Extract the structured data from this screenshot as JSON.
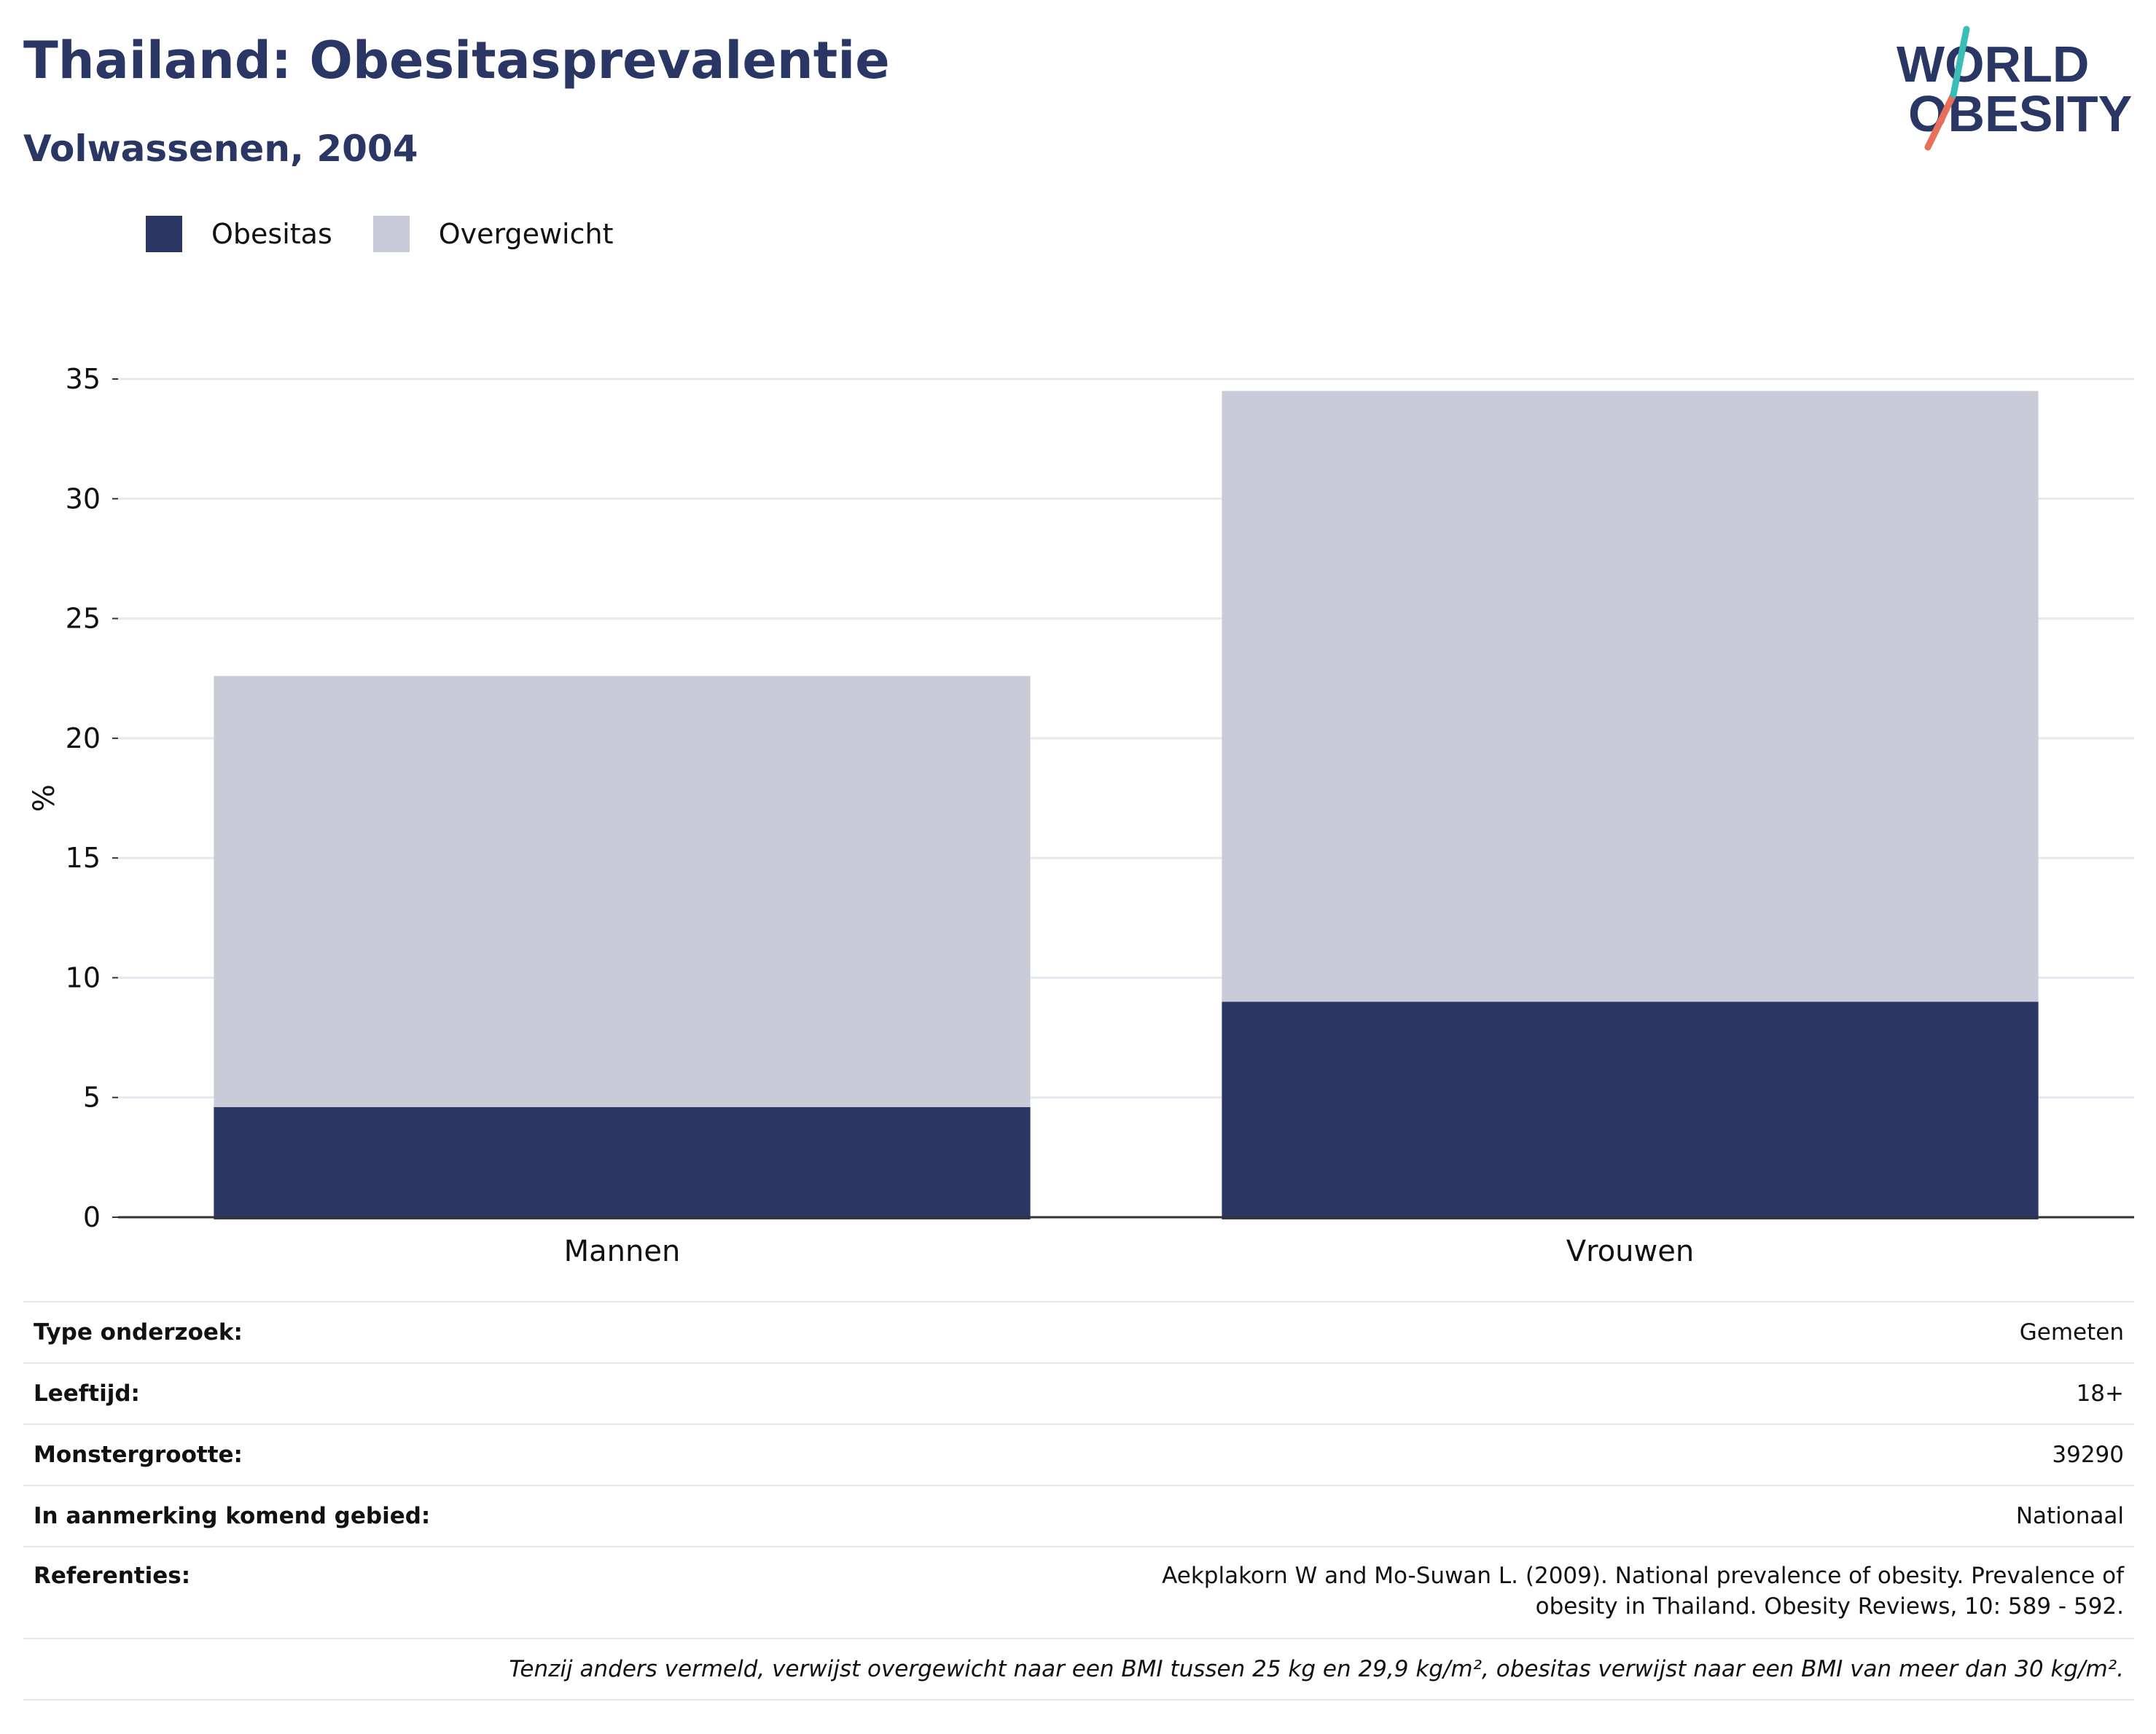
{
  "header": {
    "title": "Thailand: Obesitasprevalentie",
    "subtitle": "Volwassenen, 2004"
  },
  "logo": {
    "line1": "WORLD",
    "line2": "OBESITY"
  },
  "legend": [
    {
      "label": "Obesitas",
      "color": "#2a3663"
    },
    {
      "label": "Overgewicht",
      "color": "#c9ccd8"
    }
  ],
  "chart_data": {
    "type": "bar",
    "stacked": true,
    "categories": [
      "Mannen",
      "Vrouwen"
    ],
    "series": [
      {
        "name": "Obesitas",
        "values": [
          4.6,
          9.0
        ],
        "color": "#2a3663"
      },
      {
        "name": "Overgewicht",
        "values": [
          18.0,
          25.5
        ],
        "color": "#c9ccd8"
      }
    ],
    "ylabel": "%",
    "ylim": [
      0,
      35
    ],
    "yticks": [
      0,
      5,
      10,
      15,
      20,
      25,
      30,
      35
    ],
    "grid": true,
    "legend_position": "top-left"
  },
  "info": {
    "rows": [
      {
        "label": "Type onderzoek:",
        "value": "Gemeten"
      },
      {
        "label": "Leeftijd:",
        "value": "18+"
      },
      {
        "label": "Monstergrootte:",
        "value": "39290"
      },
      {
        "label": "In aanmerking komend gebied:",
        "value": "Nationaal"
      }
    ],
    "references": {
      "label": "Referenties:",
      "value": "Aekplakorn W and Mo-Suwan L. (2009). National prevalence of obesity. Prevalence of obesity in Thailand. Obesity Reviews, 10: 589 - 592."
    },
    "note": "Tenzij anders vermeld, verwijst overgewicht naar een BMI tussen 25 kg en 29,9 kg/m², obesitas verwijst naar een BMI van meer dan 30 kg/m²."
  }
}
